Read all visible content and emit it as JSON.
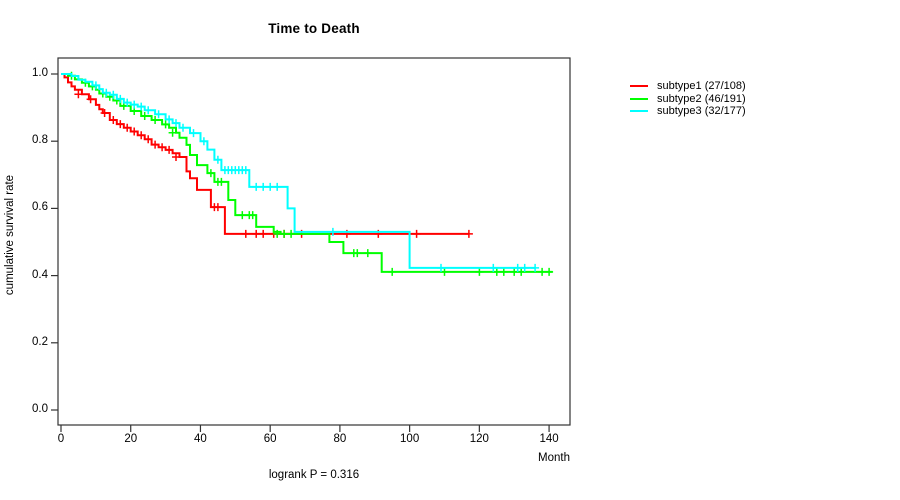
{
  "title": "Time to Death",
  "ylabel": "cumulative survival rate",
  "xlabel": "Month",
  "footer": "logrank P = 0.316",
  "chart_data": {
    "type": "line",
    "subtype": "kaplan-meier-step-survival",
    "title": "Time to Death",
    "xlabel": "Month",
    "ylabel": "cumulative survival rate",
    "annotation": "logrank P = 0.316",
    "xlim": [
      0,
      146
    ],
    "ylim": [
      0,
      1
    ],
    "x_ticks": [
      0,
      20,
      40,
      60,
      80,
      100,
      120,
      140
    ],
    "y_ticks": [
      0.0,
      0.2,
      0.4,
      0.6,
      0.8,
      1.0
    ],
    "grid": false,
    "legend_position": "right-outside",
    "axis_color": "#333333",
    "series": [
      {
        "name": "subtype1 (27/108)",
        "color": "#ff0000",
        "end": 117,
        "steps": [
          [
            0,
            1.0
          ],
          [
            1,
            0.99
          ],
          [
            2,
            0.975
          ],
          [
            3,
            0.963
          ],
          [
            4,
            0.953
          ],
          [
            6,
            0.94
          ],
          [
            8,
            0.925
          ],
          [
            10,
            0.908
          ],
          [
            11,
            0.895
          ],
          [
            12,
            0.884
          ],
          [
            14,
            0.863
          ],
          [
            16,
            0.851
          ],
          [
            18,
            0.84
          ],
          [
            20,
            0.829
          ],
          [
            22,
            0.818
          ],
          [
            24,
            0.806
          ],
          [
            26,
            0.79
          ],
          [
            28,
            0.782
          ],
          [
            30,
            0.774
          ],
          [
            32,
            0.764
          ],
          [
            34,
            0.753
          ],
          [
            36,
            0.71
          ],
          [
            37,
            0.69
          ],
          [
            39,
            0.655
          ],
          [
            43,
            0.604
          ],
          [
            47,
            0.524
          ]
        ],
        "censors": [
          [
            5,
            0.94
          ],
          [
            8.5,
            0.925
          ],
          [
            12.5,
            0.884
          ],
          [
            15,
            0.863
          ],
          [
            17,
            0.851
          ],
          [
            19,
            0.84
          ],
          [
            21,
            0.829
          ],
          [
            23,
            0.818
          ],
          [
            25,
            0.806
          ],
          [
            27,
            0.79
          ],
          [
            29,
            0.782
          ],
          [
            31,
            0.774
          ],
          [
            33,
            0.753
          ],
          [
            44,
            0.604
          ],
          [
            45,
            0.604
          ],
          [
            53,
            0.524
          ],
          [
            56,
            0.524
          ],
          [
            58,
            0.524
          ],
          [
            61,
            0.524
          ],
          [
            64,
            0.524
          ],
          [
            69,
            0.524
          ],
          [
            82,
            0.524
          ],
          [
            91,
            0.524
          ],
          [
            102,
            0.524
          ],
          [
            117,
            0.524
          ]
        ]
      },
      {
        "name": "subtype2 (46/191)",
        "color": "#00ff00",
        "end": 141,
        "steps": [
          [
            0,
            1.0
          ],
          [
            2,
            0.995
          ],
          [
            4,
            0.984
          ],
          [
            6,
            0.974
          ],
          [
            8,
            0.963
          ],
          [
            10,
            0.953
          ],
          [
            11,
            0.942
          ],
          [
            13,
            0.932
          ],
          [
            15,
            0.921
          ],
          [
            17,
            0.905
          ],
          [
            20,
            0.89
          ],
          [
            23,
            0.875
          ],
          [
            26,
            0.863
          ],
          [
            29,
            0.85
          ],
          [
            31,
            0.84
          ],
          [
            33,
            0.825
          ],
          [
            34,
            0.81
          ],
          [
            36,
            0.789
          ],
          [
            37,
            0.759
          ],
          [
            39,
            0.729
          ],
          [
            42,
            0.705
          ],
          [
            44,
            0.679
          ],
          [
            48,
            0.625
          ],
          [
            50,
            0.58
          ],
          [
            56,
            0.545
          ],
          [
            61,
            0.53
          ],
          [
            63,
            0.524
          ],
          [
            77,
            0.5
          ],
          [
            81,
            0.467
          ],
          [
            92,
            0.411
          ]
        ],
        "censors": [
          [
            3,
            0.995
          ],
          [
            7,
            0.974
          ],
          [
            9,
            0.963
          ],
          [
            12,
            0.942
          ],
          [
            14,
            0.932
          ],
          [
            16,
            0.921
          ],
          [
            18,
            0.905
          ],
          [
            21,
            0.89
          ],
          [
            24,
            0.875
          ],
          [
            27,
            0.863
          ],
          [
            30,
            0.85
          ],
          [
            32,
            0.825
          ],
          [
            43,
            0.705
          ],
          [
            45,
            0.679
          ],
          [
            46,
            0.679
          ],
          [
            52,
            0.58
          ],
          [
            54,
            0.58
          ],
          [
            55,
            0.58
          ],
          [
            62,
            0.524
          ],
          [
            64,
            0.524
          ],
          [
            66,
            0.524
          ],
          [
            84,
            0.467
          ],
          [
            85,
            0.467
          ],
          [
            88,
            0.467
          ],
          [
            95,
            0.411
          ],
          [
            110,
            0.411
          ],
          [
            120,
            0.411
          ],
          [
            125,
            0.411
          ],
          [
            127,
            0.411
          ],
          [
            130,
            0.411
          ],
          [
            132,
            0.411
          ],
          [
            138,
            0.411
          ],
          [
            140,
            0.411
          ]
        ],
        "events_total_label": "46/191"
      },
      {
        "name": "subtype3 (32/177)",
        "color": "#00ffff",
        "end": 136,
        "steps": [
          [
            0,
            1.0
          ],
          [
            3,
            0.994
          ],
          [
            5,
            0.983
          ],
          [
            7,
            0.977
          ],
          [
            9,
            0.966
          ],
          [
            11,
            0.955
          ],
          [
            12,
            0.944
          ],
          [
            14,
            0.938
          ],
          [
            16,
            0.926
          ],
          [
            18,
            0.915
          ],
          [
            20,
            0.909
          ],
          [
            22,
            0.903
          ],
          [
            24,
            0.892
          ],
          [
            27,
            0.88
          ],
          [
            30,
            0.865
          ],
          [
            32,
            0.854
          ],
          [
            34,
            0.84
          ],
          [
            37,
            0.824
          ],
          [
            40,
            0.8
          ],
          [
            42,
            0.775
          ],
          [
            44,
            0.745
          ],
          [
            46,
            0.714
          ],
          [
            54,
            0.664
          ],
          [
            65,
            0.6
          ],
          [
            67,
            0.53
          ],
          [
            100,
            0.423
          ]
        ],
        "censors": [
          [
            10,
            0.966
          ],
          [
            13,
            0.944
          ],
          [
            15,
            0.938
          ],
          [
            17,
            0.926
          ],
          [
            19,
            0.915
          ],
          [
            21,
            0.909
          ],
          [
            23,
            0.903
          ],
          [
            25,
            0.892
          ],
          [
            28,
            0.88
          ],
          [
            31,
            0.865
          ],
          [
            33,
            0.854
          ],
          [
            35,
            0.84
          ],
          [
            38,
            0.824
          ],
          [
            41,
            0.8
          ],
          [
            45,
            0.745
          ],
          [
            47,
            0.714
          ],
          [
            48,
            0.714
          ],
          [
            49,
            0.714
          ],
          [
            50,
            0.714
          ],
          [
            51,
            0.714
          ],
          [
            52,
            0.714
          ],
          [
            53,
            0.714
          ],
          [
            56,
            0.664
          ],
          [
            58,
            0.664
          ],
          [
            60,
            0.664
          ],
          [
            62,
            0.664
          ],
          [
            78,
            0.53
          ],
          [
            109,
            0.423
          ],
          [
            124,
            0.423
          ],
          [
            131,
            0.423
          ],
          [
            133,
            0.423
          ],
          [
            136,
            0.423
          ]
        ]
      }
    ]
  }
}
